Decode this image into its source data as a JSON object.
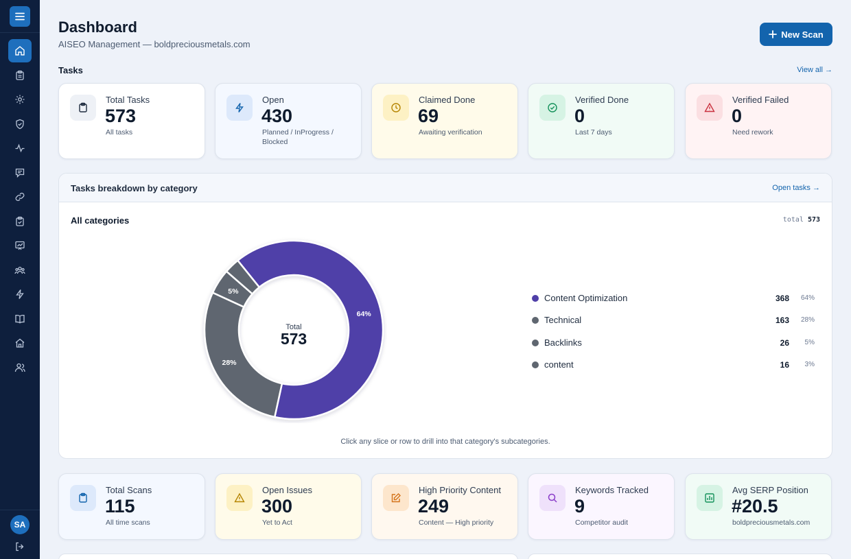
{
  "header": {
    "title": "Dashboard",
    "subtitle": "AISEO Management — boldpreciousmetals.com",
    "new_scan_label": "New Scan"
  },
  "sidebar": {
    "active": "home",
    "items": [
      {
        "icon": "home-icon"
      },
      {
        "icon": "clipboard-icon"
      },
      {
        "icon": "gear-icon"
      },
      {
        "icon": "shield-icon"
      },
      {
        "icon": "activity-icon"
      },
      {
        "icon": "message-icon"
      },
      {
        "icon": "link-icon"
      },
      {
        "icon": "clipboard-check-icon"
      },
      {
        "icon": "presentation-chart-icon"
      },
      {
        "icon": "users-icon"
      },
      {
        "icon": "lightning-icon"
      },
      {
        "icon": "book-icon"
      },
      {
        "icon": "house-icon"
      },
      {
        "icon": "user-group-icon"
      }
    ],
    "avatar_initials": "SA"
  },
  "tasks": {
    "section_title": "Tasks",
    "view_all": "View all →",
    "cards": [
      {
        "label": "Total Tasks",
        "value": "573",
        "sub": "All tasks",
        "icon": "clipboard-icon",
        "bg": "#ffffff",
        "icon_bg": "#eef1f6",
        "icon_color": "#1e2b3e"
      },
      {
        "label": "Open",
        "value": "430",
        "sub": "Planned / InProgress / Blocked",
        "icon": "lightning-icon",
        "bg": "#f4f8ff",
        "icon_bg": "#dde9fb",
        "icon_color": "#1364ad"
      },
      {
        "label": "Claimed Done",
        "value": "69",
        "sub": "Awaiting verification",
        "icon": "clock-icon",
        "bg": "#fffbea",
        "icon_bg": "#fdf1c4",
        "icon_color": "#b58400"
      },
      {
        "label": "Verified Done",
        "value": "0",
        "sub": "Last 7 days",
        "icon": "check-circle-icon",
        "bg": "#f1fbf6",
        "icon_bg": "#d6f3e4",
        "icon_color": "#14915a"
      },
      {
        "label": "Verified Failed",
        "value": "0",
        "sub": "Need rework",
        "icon": "warning-icon",
        "bg": "#fff3f4",
        "icon_bg": "#fbdfe2",
        "icon_color": "#c9303e"
      }
    ]
  },
  "breakdown": {
    "title": "Tasks breakdown by category",
    "link": "Open tasks →",
    "scope": "All categories",
    "total_label": "total",
    "total_value": "573",
    "center_label": "Total",
    "center_value": "573",
    "hint": "Click any slice or row to drill into that category's subcategories."
  },
  "chart_data": {
    "type": "pie",
    "title": "",
    "categories": [
      "Content Optimization",
      "Technical",
      "Backlinks",
      "content"
    ],
    "values": [
      368,
      163,
      26,
      16
    ],
    "percent_labels": [
      "64%",
      "28%",
      "5%",
      "3%"
    ],
    "colors": [
      "#4f3fa8",
      "#5f6670",
      "#5f6670",
      "#5f6670"
    ],
    "legend_placement": "right"
  },
  "overview": {
    "cards": [
      {
        "label": "Total Scans",
        "value": "115",
        "sub": "All time scans",
        "icon": "clipboard-icon",
        "bg": "#f4f8ff",
        "icon_bg": "#dde9fb",
        "icon_color": "#1364ad"
      },
      {
        "label": "Open Issues",
        "value": "300",
        "sub": "Yet to Act",
        "icon": "warning-icon",
        "bg": "#fffbea",
        "icon_bg": "#fdf1c4",
        "icon_color": "#b58400"
      },
      {
        "label": "High Priority Content",
        "value": "249",
        "sub": "Content — High priority",
        "icon": "edit-icon",
        "bg": "#fff8ef",
        "icon_bg": "#fde6cc",
        "icon_color": "#d4731a"
      },
      {
        "label": "Keywords Tracked",
        "value": "9",
        "sub": "Competitor audit",
        "icon": "search-icon",
        "bg": "#fbf6ff",
        "icon_bg": "#efe1fb",
        "icon_color": "#8a3cc9"
      },
      {
        "label": "Avg SERP Position",
        "value": "#20.5",
        "sub": "boldpreciousmetals.com",
        "icon": "bar-chart-icon",
        "bg": "#f1fbf6",
        "icon_bg": "#d6f3e4",
        "icon_color": "#14915a"
      }
    ]
  }
}
